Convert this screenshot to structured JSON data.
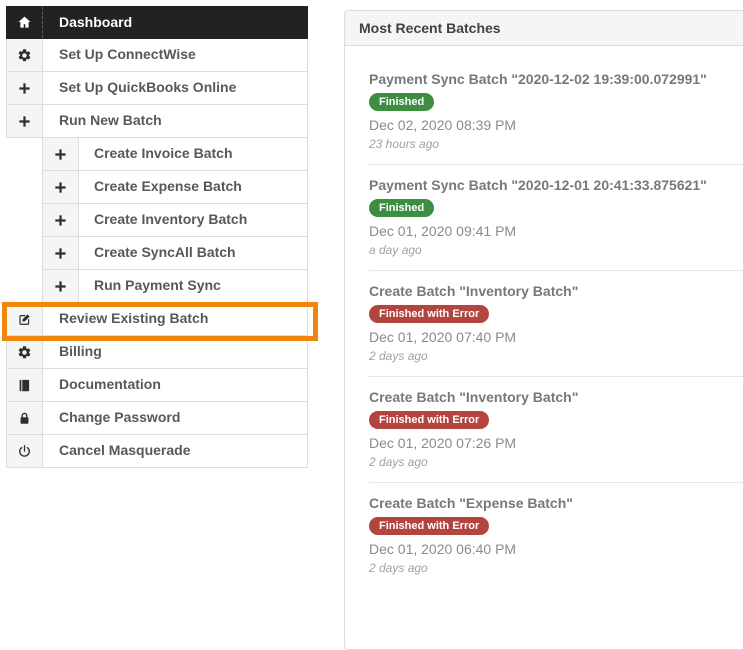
{
  "sidebar": {
    "highlight_color": "#EF860D",
    "items": [
      {
        "label": "Dashboard",
        "icon": "home-icon",
        "level": 1,
        "active": true
      },
      {
        "label": "Set Up ConnectWise",
        "icon": "gear-icon",
        "level": 1
      },
      {
        "label": "Set Up QuickBooks Online",
        "icon": "plus-icon",
        "level": 1
      },
      {
        "label": "Run New Batch",
        "icon": "plus-icon",
        "level": 1
      },
      {
        "label": "Create Invoice Batch",
        "icon": "plus-icon",
        "level": 2
      },
      {
        "label": "Create Expense Batch",
        "icon": "plus-icon",
        "level": 2
      },
      {
        "label": "Create Inventory Batch",
        "icon": "plus-icon",
        "level": 2
      },
      {
        "label": "Create SyncAll Batch",
        "icon": "plus-icon",
        "level": 2
      },
      {
        "label": "Run Payment Sync",
        "icon": "plus-icon",
        "level": 2
      },
      {
        "label": "Review Existing Batch",
        "icon": "edit-icon",
        "level": 1,
        "highlighted": true
      },
      {
        "label": "Billing",
        "icon": "gear-icon",
        "level": 1
      },
      {
        "label": "Documentation",
        "icon": "book-icon",
        "level": 1
      },
      {
        "label": "Change Password",
        "icon": "lock-icon",
        "level": 1
      },
      {
        "label": "Cancel Masquerade",
        "icon": "power-icon",
        "level": 1
      }
    ]
  },
  "panel": {
    "title": "Most Recent Batches",
    "status_colors": {
      "success": "#3E8E41",
      "error": "#B4443E"
    },
    "batches": [
      {
        "title": "Payment Sync Batch \"2020-12-02 19:39:00.072991\"",
        "status": "Finished",
        "status_type": "success",
        "date": "Dec 02, 2020 08:39 PM",
        "relative": "23 hours ago"
      },
      {
        "title": "Payment Sync Batch \"2020-12-01 20:41:33.875621\"",
        "status": "Finished",
        "status_type": "success",
        "date": "Dec 01, 2020 09:41 PM",
        "relative": "a day ago"
      },
      {
        "title": "Create Batch \"Inventory Batch\"",
        "status": "Finished with Error",
        "status_type": "error",
        "date": "Dec 01, 2020 07:40 PM",
        "relative": "2 days ago"
      },
      {
        "title": "Create Batch \"Inventory Batch\"",
        "status": "Finished with Error",
        "status_type": "error",
        "date": "Dec 01, 2020 07:26 PM",
        "relative": "2 days ago"
      },
      {
        "title": "Create Batch \"Expense Batch\"",
        "status": "Finished with Error",
        "status_type": "error",
        "date": "Dec 01, 2020 06:40 PM",
        "relative": "2 days ago"
      }
    ]
  }
}
